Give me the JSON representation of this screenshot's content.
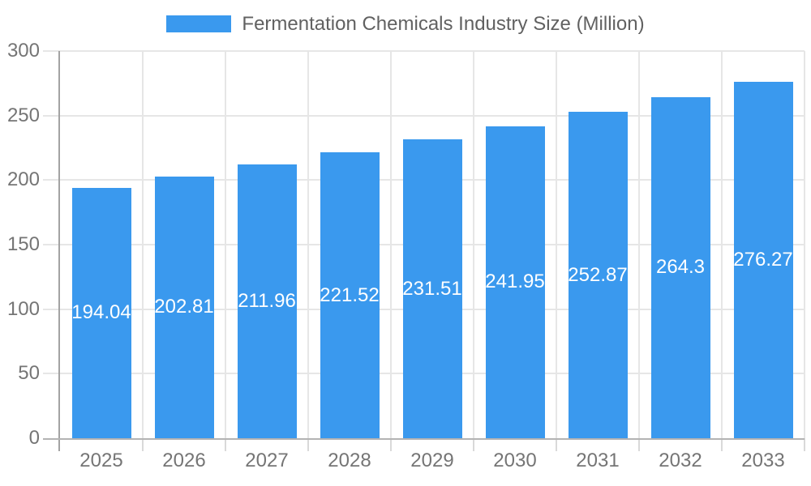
{
  "page": {
    "background": "#FFFFFF"
  },
  "legend": {
    "label": "Fermentation Chemicals Industry Size (Million)",
    "swatch_color": "#3A99EE"
  },
  "chart_data": {
    "type": "bar",
    "title": "Fermentation Chemicals Industry Size (Million)",
    "categories": [
      "2025",
      "2026",
      "2027",
      "2028",
      "2029",
      "2030",
      "2031",
      "2032",
      "2033"
    ],
    "values": [
      194.04,
      202.81,
      211.96,
      221.52,
      231.51,
      241.95,
      252.87,
      264.3,
      276.27
    ],
    "value_labels": [
      "194.04",
      "202.81",
      "211.96",
      "221.52",
      "231.51",
      "241.95",
      "252.87",
      "264.3",
      "276.27"
    ],
    "xlabel": "",
    "ylabel": "",
    "ylim": [
      0,
      300
    ],
    "ytick_step": 50,
    "ytick_labels": [
      "0",
      "50",
      "100",
      "150",
      "200",
      "250",
      "300"
    ],
    "grid": true,
    "legend_position": "top",
    "colors": {
      "bar": "#3A99EE",
      "bar_label": "#FFFFFF",
      "grid": "#E6E6E6",
      "axis": "#A3A3A3",
      "baseline": "#B3B3B3",
      "x_tick": "#D9D9D9",
      "tick_label": "#757575",
      "legend_text": "#616161"
    }
  }
}
